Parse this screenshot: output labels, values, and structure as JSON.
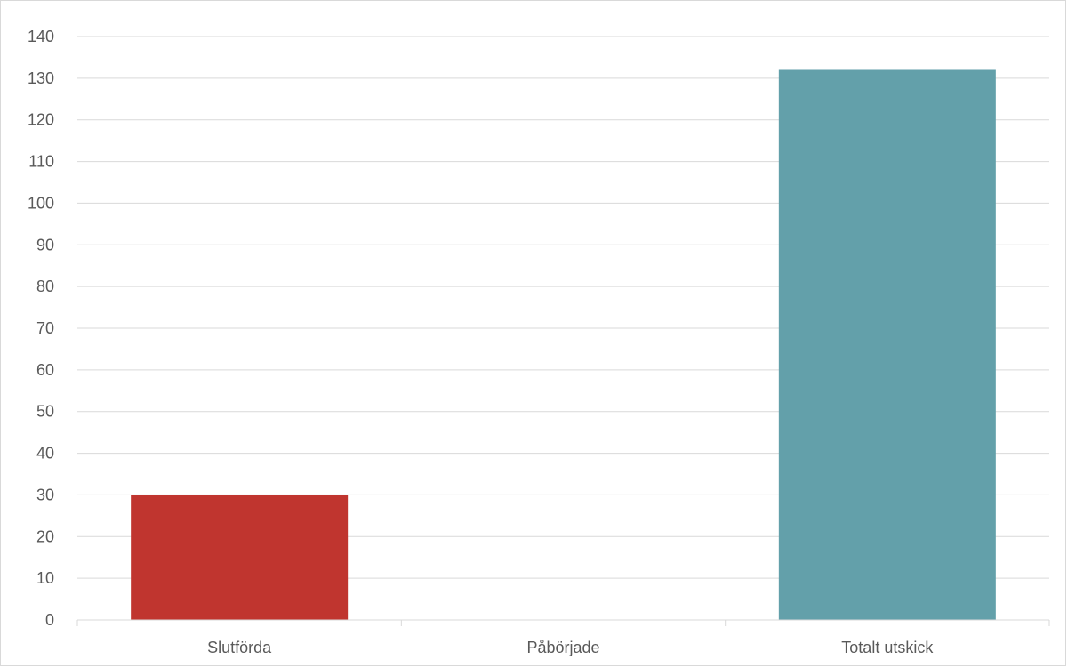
{
  "chart_data": {
    "type": "bar",
    "title": "",
    "xlabel": "",
    "ylabel": "",
    "categories": [
      "Slutförda",
      "Påbörjade",
      "Totalt utskick"
    ],
    "values": [
      30,
      0,
      132
    ],
    "colors": [
      "#c0352f",
      "#c0352f",
      "#63a0aa"
    ],
    "ylim": [
      0,
      140
    ],
    "yticks": [
      0,
      10,
      20,
      30,
      40,
      50,
      60,
      70,
      80,
      90,
      100,
      110,
      120,
      130,
      140
    ],
    "grid": true,
    "legend": "none"
  }
}
